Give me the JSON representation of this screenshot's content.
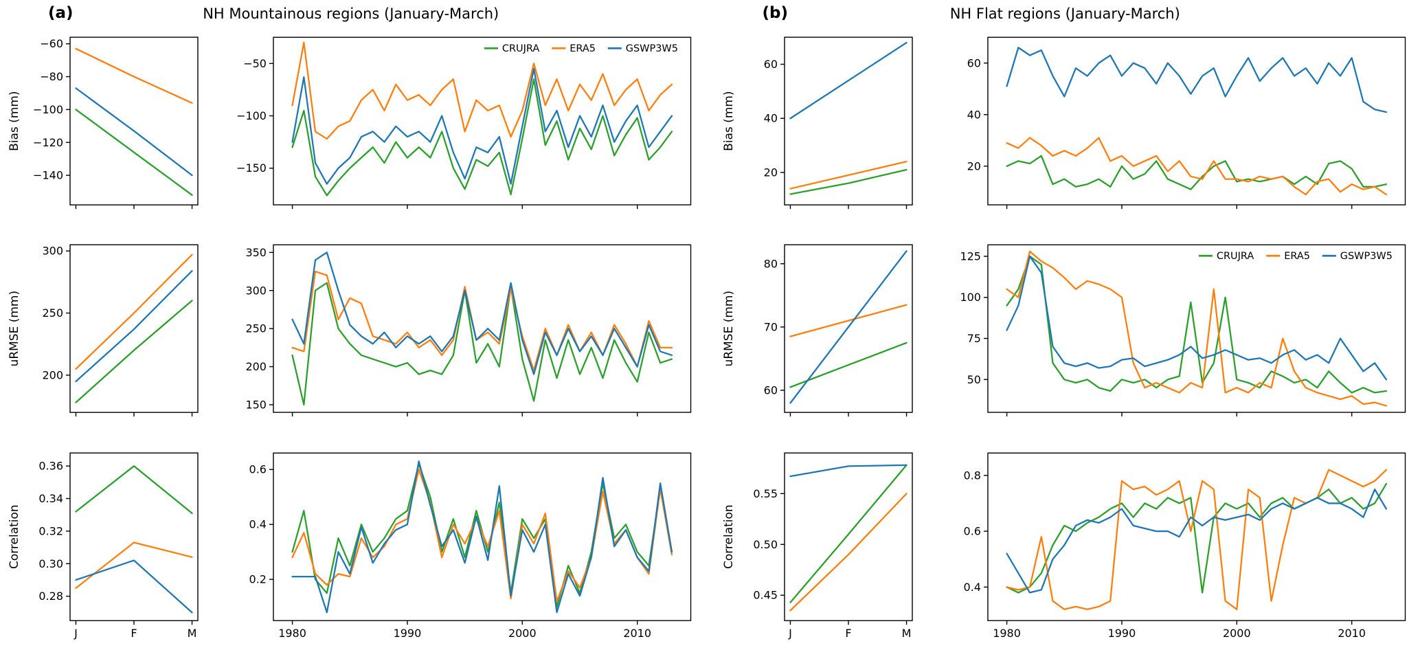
{
  "figure": {
    "panels": [
      {
        "label": "(a)",
        "title": "NH Mountainous regions (January-March)"
      },
      {
        "label": "(b)",
        "title": "NH Flat regions (January-March)"
      }
    ]
  },
  "colors": {
    "CRUJRA": "#2ca02c",
    "ERA5": "#ff7f0e",
    "GSWP3W5": "#1f77b4"
  },
  "legend_entries": [
    "CRUJRA",
    "ERA5",
    "GSWP3W5"
  ],
  "chart_data": [
    {
      "id": "a-bias-monthly",
      "panel": "a",
      "type": "line",
      "ylabel": "Bias (mm)",
      "categories": [
        "J",
        "F",
        "M"
      ],
      "show_xlabels": false,
      "yticks": [
        -140,
        -120,
        -100,
        -80,
        -60
      ],
      "ylim": [
        -158,
        -56
      ],
      "ytick_decimals": 0,
      "legend": false,
      "series": [
        {
          "name": "CRUJRA",
          "values": [
            -100,
            -126,
            -152
          ]
        },
        {
          "name": "ERA5",
          "values": [
            -63,
            -80,
            -96
          ]
        },
        {
          "name": "GSWP3W5",
          "values": [
            -87,
            -113,
            -140
          ]
        }
      ]
    },
    {
      "id": "a-bias-timeseries",
      "panel": "a",
      "type": "line",
      "ylabel": null,
      "x_start": 1980,
      "xticks": [
        1980,
        1990,
        2000,
        2010
      ],
      "show_xlabels": false,
      "yticks": [
        -150,
        -100,
        -50
      ],
      "ylim": [
        -185,
        -25
      ],
      "ytick_decimals": 0,
      "legend": true,
      "series": [
        {
          "name": "CRUJRA",
          "values": [
            -130,
            -95,
            -158,
            -176,
            -162,
            -150,
            -140,
            -130,
            -145,
            -125,
            -140,
            -130,
            -140,
            -115,
            -150,
            -170,
            -142,
            -148,
            -135,
            -175,
            -122,
            -65,
            -128,
            -105,
            -142,
            -112,
            -132,
            -100,
            -138,
            -118,
            -102,
            -142,
            -130,
            -115
          ]
        },
        {
          "name": "ERA5",
          "values": [
            -90,
            -30,
            -115,
            -122,
            -110,
            -105,
            -85,
            -75,
            -95,
            -70,
            -85,
            -80,
            -90,
            -75,
            -65,
            -115,
            -85,
            -95,
            -90,
            -120,
            -95,
            -50,
            -90,
            -65,
            -95,
            -70,
            -85,
            -60,
            -90,
            -75,
            -65,
            -95,
            -80,
            -70
          ]
        },
        {
          "name": "GSWP3W5",
          "values": [
            -125,
            -63,
            -145,
            -165,
            -150,
            -140,
            -120,
            -115,
            -125,
            -110,
            -120,
            -115,
            -125,
            -100,
            -135,
            -160,
            -130,
            -135,
            -120,
            -165,
            -110,
            -55,
            -115,
            -95,
            -130,
            -100,
            -120,
            -90,
            -125,
            -105,
            -90,
            -130,
            -115,
            -100
          ]
        }
      ]
    },
    {
      "id": "a-urmse-monthly",
      "panel": "a",
      "type": "line",
      "ylabel": "uRMSE (mm)",
      "categories": [
        "J",
        "F",
        "M"
      ],
      "show_xlabels": false,
      "yticks": [
        200,
        250,
        300
      ],
      "ylim": [
        170,
        305
      ],
      "ytick_decimals": 0,
      "legend": false,
      "series": [
        {
          "name": "CRUJRA",
          "values": [
            178,
            220,
            260
          ]
        },
        {
          "name": "ERA5",
          "values": [
            205,
            250,
            297
          ]
        },
        {
          "name": "GSWP3W5",
          "values": [
            195,
            237,
            284
          ]
        }
      ]
    },
    {
      "id": "a-urmse-timeseries",
      "panel": "a",
      "type": "line",
      "ylabel": null,
      "x_start": 1980,
      "xticks": [
        1980,
        1990,
        2000,
        2010
      ],
      "show_xlabels": false,
      "yticks": [
        150,
        200,
        250,
        300,
        350
      ],
      "ylim": [
        140,
        360
      ],
      "ytick_decimals": 0,
      "legend": false,
      "series": [
        {
          "name": "CRUJRA",
          "values": [
            215,
            150,
            300,
            310,
            250,
            230,
            215,
            210,
            205,
            200,
            205,
            190,
            195,
            190,
            215,
            300,
            205,
            230,
            200,
            305,
            210,
            155,
            235,
            185,
            235,
            190,
            225,
            185,
            235,
            205,
            180,
            245,
            205,
            210
          ]
        },
        {
          "name": "ERA5",
          "values": [
            225,
            220,
            325,
            320,
            262,
            290,
            283,
            240,
            235,
            230,
            245,
            225,
            235,
            215,
            235,
            305,
            235,
            245,
            230,
            302,
            240,
            195,
            250,
            215,
            255,
            220,
            245,
            215,
            255,
            230,
            200,
            260,
            225,
            225
          ]
        },
        {
          "name": "GSWP3W5",
          "values": [
            262,
            230,
            340,
            350,
            300,
            255,
            240,
            230,
            245,
            225,
            240,
            230,
            240,
            220,
            240,
            300,
            235,
            250,
            235,
            310,
            235,
            190,
            245,
            215,
            250,
            220,
            240,
            215,
            250,
            225,
            200,
            255,
            220,
            215
          ]
        }
      ]
    },
    {
      "id": "a-correlation-monthly",
      "panel": "a",
      "type": "line",
      "ylabel": "Correlation",
      "categories": [
        "J",
        "F",
        "M"
      ],
      "show_xlabels": true,
      "yticks": [
        0.28,
        0.3,
        0.32,
        0.34,
        0.36
      ],
      "ylim": [
        0.265,
        0.368
      ],
      "ytick_decimals": 2,
      "legend": false,
      "series": [
        {
          "name": "CRUJRA",
          "values": [
            0.332,
            0.36,
            0.331
          ]
        },
        {
          "name": "ERA5",
          "values": [
            0.285,
            0.313,
            0.304
          ]
        },
        {
          "name": "GSWP3W5",
          "values": [
            0.29,
            0.302,
            0.27
          ]
        }
      ]
    },
    {
      "id": "a-correlation-timeseries",
      "panel": "a",
      "type": "line",
      "ylabel": null,
      "x_start": 1980,
      "xticks": [
        1980,
        1990,
        2000,
        2010
      ],
      "show_xlabels": true,
      "yticks": [
        0.2,
        0.4,
        0.6
      ],
      "ylim": [
        0.05,
        0.66
      ],
      "ytick_decimals": 1,
      "legend": false,
      "series": [
        {
          "name": "CRUJRA",
          "values": [
            0.3,
            0.45,
            0.2,
            0.15,
            0.35,
            0.25,
            0.4,
            0.3,
            0.35,
            0.42,
            0.45,
            0.62,
            0.5,
            0.3,
            0.42,
            0.28,
            0.45,
            0.3,
            0.48,
            0.15,
            0.42,
            0.35,
            0.42,
            0.1,
            0.25,
            0.15,
            0.3,
            0.55,
            0.35,
            0.4,
            0.3,
            0.25,
            0.53,
            0.3
          ]
        },
        {
          "name": "ERA5",
          "values": [
            0.28,
            0.37,
            0.22,
            0.18,
            0.22,
            0.21,
            0.35,
            0.28,
            0.32,
            0.4,
            0.42,
            0.6,
            0.48,
            0.28,
            0.4,
            0.33,
            0.42,
            0.32,
            0.45,
            0.13,
            0.4,
            0.33,
            0.44,
            0.12,
            0.23,
            0.17,
            0.28,
            0.52,
            0.33,
            0.38,
            0.28,
            0.22,
            0.53,
            0.29
          ]
        },
        {
          "name": "GSWP3W5",
          "values": [
            0.21,
            0.21,
            0.21,
            0.08,
            0.3,
            0.22,
            0.39,
            0.26,
            0.33,
            0.38,
            0.4,
            0.63,
            0.47,
            0.32,
            0.38,
            0.26,
            0.43,
            0.27,
            0.54,
            0.14,
            0.38,
            0.3,
            0.4,
            0.08,
            0.22,
            0.14,
            0.28,
            0.57,
            0.32,
            0.38,
            0.28,
            0.23,
            0.55,
            0.3
          ]
        }
      ]
    },
    {
      "id": "b-bias-monthly",
      "panel": "b",
      "type": "line",
      "ylabel": "Bias (mm)",
      "categories": [
        "J",
        "F",
        "M"
      ],
      "show_xlabels": false,
      "yticks": [
        20,
        40,
        60
      ],
      "ylim": [
        8,
        70
      ],
      "ytick_decimals": 0,
      "legend": false,
      "series": [
        {
          "name": "CRUJRA",
          "values": [
            12,
            16,
            21
          ]
        },
        {
          "name": "ERA5",
          "values": [
            14,
            19,
            24
          ]
        },
        {
          "name": "GSWP3W5",
          "values": [
            40,
            54,
            68
          ]
        }
      ]
    },
    {
      "id": "b-bias-timeseries",
      "panel": "b",
      "type": "line",
      "ylabel": null,
      "x_start": 1980,
      "xticks": [
        1980,
        1990,
        2000,
        2010
      ],
      "show_xlabels": false,
      "yticks": [
        20,
        40,
        60
      ],
      "ylim": [
        5,
        70
      ],
      "ytick_decimals": 0,
      "legend": false,
      "series": [
        {
          "name": "CRUJRA",
          "values": [
            20,
            22,
            21,
            24,
            13,
            15,
            12,
            13,
            15,
            12,
            20,
            15,
            17,
            22,
            15,
            13,
            11,
            16,
            20,
            22,
            14,
            15,
            14,
            15,
            16,
            13,
            16,
            13,
            21,
            22,
            19,
            12,
            12,
            13
          ]
        },
        {
          "name": "ERA5",
          "values": [
            29,
            27,
            31,
            28,
            24,
            26,
            24,
            27,
            31,
            22,
            24,
            20,
            22,
            24,
            18,
            22,
            16,
            15,
            22,
            15,
            15,
            14,
            16,
            15,
            16,
            12,
            9,
            14,
            15,
            10,
            13,
            11,
            12,
            9
          ]
        },
        {
          "name": "GSWP3W5",
          "values": [
            51,
            66,
            63,
            65,
            55,
            47,
            58,
            55,
            60,
            63,
            55,
            60,
            58,
            52,
            60,
            55,
            48,
            55,
            58,
            47,
            55,
            62,
            53,
            58,
            62,
            55,
            58,
            52,
            60,
            55,
            62,
            45,
            42,
            41
          ]
        }
      ]
    },
    {
      "id": "b-urmse-monthly",
      "panel": "b",
      "type": "line",
      "ylabel": "uRMSE (mm)",
      "categories": [
        "J",
        "F",
        "M"
      ],
      "show_xlabels": false,
      "yticks": [
        60,
        70,
        80
      ],
      "ylim": [
        56.5,
        83
      ],
      "ytick_decimals": 0,
      "legend": false,
      "series": [
        {
          "name": "CRUJRA",
          "values": [
            60.5,
            64,
            67.5
          ]
        },
        {
          "name": "ERA5",
          "values": [
            68.5,
            71,
            73.5
          ]
        },
        {
          "name": "GSWP3W5",
          "values": [
            58,
            70,
            82
          ]
        }
      ]
    },
    {
      "id": "b-urmse-timeseries",
      "panel": "b",
      "type": "line",
      "ylabel": null,
      "x_start": 1980,
      "xticks": [
        1980,
        1990,
        2000,
        2010
      ],
      "show_xlabels": false,
      "yticks": [
        50,
        75,
        100,
        125
      ],
      "ylim": [
        30,
        132
      ],
      "ytick_decimals": 0,
      "legend": true,
      "series": [
        {
          "name": "CRUJRA",
          "values": [
            95,
            105,
            125,
            120,
            60,
            50,
            48,
            50,
            45,
            43,
            50,
            48,
            50,
            45,
            50,
            52,
            97,
            48,
            60,
            100,
            50,
            48,
            45,
            55,
            52,
            48,
            50,
            45,
            55,
            48,
            42,
            45,
            42,
            43
          ]
        },
        {
          "name": "ERA5",
          "values": [
            105,
            100,
            128,
            122,
            118,
            112,
            105,
            110,
            108,
            105,
            100,
            60,
            45,
            48,
            45,
            42,
            48,
            45,
            105,
            42,
            45,
            42,
            48,
            45,
            75,
            55,
            45,
            42,
            40,
            38,
            40,
            35,
            36,
            34
          ]
        },
        {
          "name": "GSWP3W5",
          "values": [
            80,
            95,
            125,
            115,
            70,
            60,
            58,
            60,
            57,
            58,
            62,
            63,
            58,
            60,
            62,
            65,
            70,
            63,
            65,
            68,
            65,
            62,
            63,
            60,
            65,
            68,
            62,
            65,
            60,
            75,
            65,
            55,
            60,
            50
          ]
        }
      ]
    },
    {
      "id": "b-correlation-monthly",
      "panel": "b",
      "type": "line",
      "ylabel": "Correlation",
      "categories": [
        "J",
        "F",
        "M"
      ],
      "show_xlabels": true,
      "yticks": [
        0.45,
        0.5,
        0.55
      ],
      "ylim": [
        0.425,
        0.59
      ],
      "ytick_decimals": 2,
      "legend": false,
      "series": [
        {
          "name": "CRUJRA",
          "values": [
            0.443,
            0.51,
            0.578
          ]
        },
        {
          "name": "ERA5",
          "values": [
            0.435,
            0.49,
            0.55
          ]
        },
        {
          "name": "GSWP3W5",
          "values": [
            0.567,
            0.577,
            0.578
          ]
        }
      ]
    },
    {
      "id": "b-correlation-timeseries",
      "panel": "b",
      "type": "line",
      "ylabel": null,
      "x_start": 1980,
      "xticks": [
        1980,
        1990,
        2000,
        2010
      ],
      "show_xlabels": true,
      "yticks": [
        0.4,
        0.6,
        0.8
      ],
      "ylim": [
        0.28,
        0.88
      ],
      "ytick_decimals": 1,
      "legend": false,
      "series": [
        {
          "name": "CRUJRA",
          "values": [
            0.4,
            0.38,
            0.4,
            0.45,
            0.55,
            0.62,
            0.6,
            0.63,
            0.65,
            0.68,
            0.7,
            0.65,
            0.7,
            0.68,
            0.72,
            0.7,
            0.72,
            0.38,
            0.65,
            0.7,
            0.68,
            0.7,
            0.65,
            0.7,
            0.72,
            0.68,
            0.7,
            0.72,
            0.75,
            0.7,
            0.72,
            0.68,
            0.7,
            0.77
          ]
        },
        {
          "name": "ERA5",
          "values": [
            0.4,
            0.39,
            0.4,
            0.58,
            0.35,
            0.32,
            0.33,
            0.32,
            0.33,
            0.35,
            0.78,
            0.75,
            0.76,
            0.73,
            0.75,
            0.78,
            0.6,
            0.78,
            0.75,
            0.35,
            0.32,
            0.75,
            0.72,
            0.35,
            0.55,
            0.72,
            0.7,
            0.72,
            0.82,
            0.8,
            0.78,
            0.76,
            0.78,
            0.82
          ]
        },
        {
          "name": "GSWP3W5",
          "values": [
            0.52,
            0.45,
            0.38,
            0.39,
            0.5,
            0.55,
            0.62,
            0.64,
            0.63,
            0.65,
            0.68,
            0.62,
            0.61,
            0.6,
            0.6,
            0.58,
            0.65,
            0.62,
            0.65,
            0.64,
            0.65,
            0.66,
            0.64,
            0.68,
            0.7,
            0.68,
            0.7,
            0.72,
            0.7,
            0.7,
            0.68,
            0.65,
            0.75,
            0.68
          ]
        }
      ]
    }
  ]
}
